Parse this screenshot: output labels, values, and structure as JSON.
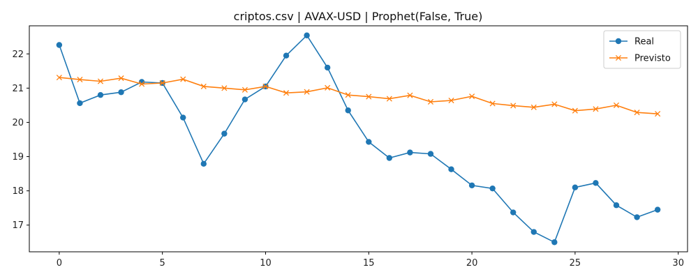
{
  "chart_data": {
    "type": "line",
    "title": "criptos.csv | AVAX-USD | Prophet(False, True)",
    "xlabel": "",
    "ylabel": "",
    "xlim": [
      -1.45,
      30.45
    ],
    "ylim": [
      16.22,
      22.82
    ],
    "x_ticks": [
      0,
      5,
      10,
      15,
      20,
      25,
      30
    ],
    "y_ticks": [
      17,
      18,
      19,
      20,
      21,
      22
    ],
    "grid": false,
    "legend_position": "upper right",
    "x": [
      0,
      1,
      2,
      3,
      4,
      5,
      6,
      7,
      8,
      9,
      10,
      11,
      12,
      13,
      14,
      15,
      16,
      17,
      18,
      19,
      20,
      21,
      22,
      23,
      24,
      25,
      26,
      27,
      28,
      29
    ],
    "series": [
      {
        "name": "Real",
        "color": "#1f77b4",
        "marker": "circle",
        "values": [
          22.26,
          20.56,
          20.8,
          20.88,
          21.18,
          21.15,
          20.14,
          18.79,
          19.67,
          20.67,
          21.05,
          21.95,
          22.54,
          21.6,
          20.35,
          19.43,
          18.96,
          19.12,
          19.08,
          18.63,
          18.16,
          18.07,
          17.37,
          16.8,
          16.5,
          18.1,
          18.23,
          17.58,
          17.23,
          17.45
        ]
      },
      {
        "name": "Previsto",
        "color": "#ff7f0e",
        "marker": "x",
        "values": [
          21.31,
          21.25,
          21.2,
          21.29,
          21.12,
          21.15,
          21.26,
          21.05,
          21.0,
          20.95,
          21.05,
          20.86,
          20.89,
          21.01,
          20.8,
          20.75,
          20.69,
          20.79,
          20.6,
          20.64,
          20.76,
          20.55,
          20.49,
          20.44,
          20.53,
          20.34,
          20.39,
          20.5,
          20.29,
          20.25
        ]
      }
    ]
  }
}
